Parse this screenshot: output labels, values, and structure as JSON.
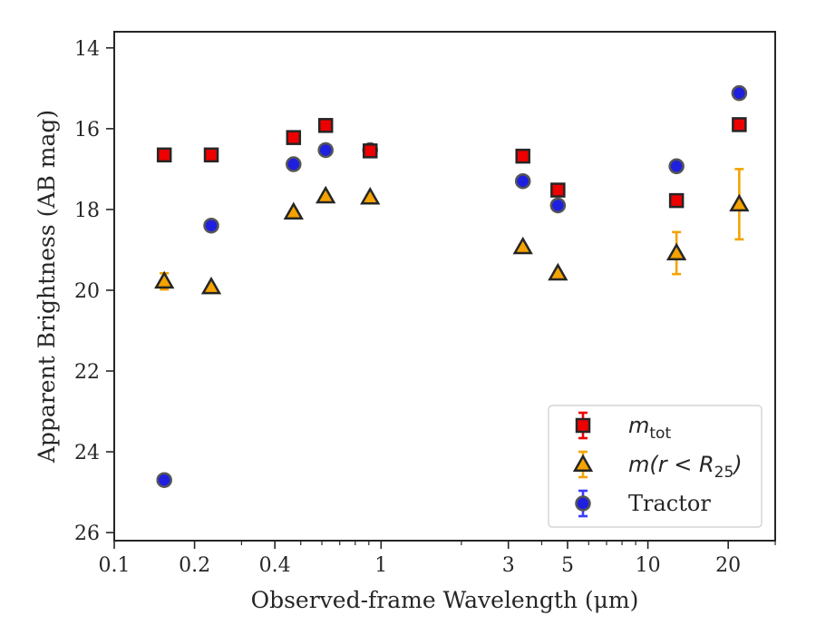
{
  "chart_data": {
    "type": "scatter",
    "title": "",
    "xlabel": "Observed-frame Wavelength (μm)",
    "ylabel": "Apparent Brightness (AB mag)",
    "xscale": "log",
    "xlim": [
      0.1,
      30
    ],
    "ylim": [
      26.2,
      13.6
    ],
    "y_inverted": true,
    "grid": false,
    "legend_position": "bottom-right",
    "x_ticks": [
      {
        "value": 0.1,
        "label": "0.1"
      },
      {
        "value": 0.2,
        "label": "0.2"
      },
      {
        "value": 0.4,
        "label": "0.4"
      },
      {
        "value": 1,
        "label": "1"
      },
      {
        "value": 3,
        "label": "3"
      },
      {
        "value": 5,
        "label": "5"
      },
      {
        "value": 10,
        "label": "10"
      },
      {
        "value": 20,
        "label": "20"
      }
    ],
    "x_minor_ticks": [
      0.3,
      0.5,
      0.6,
      0.7,
      0.8,
      0.9,
      2,
      4,
      6,
      7,
      8,
      9,
      30
    ],
    "y_ticks": [
      {
        "value": 14,
        "label": "14"
      },
      {
        "value": 16,
        "label": "16"
      },
      {
        "value": 18,
        "label": "18"
      },
      {
        "value": 20,
        "label": "20"
      },
      {
        "value": 22,
        "label": "22"
      },
      {
        "value": 24,
        "label": "24"
      },
      {
        "value": 26,
        "label": "26"
      }
    ],
    "series": [
      {
        "key": "tractor",
        "legend_html": "Tractor",
        "marker": "circle",
        "color": "#1f1fe0",
        "edge": "#555555",
        "error_color": "#3a3aff",
        "points": [
          {
            "x": 0.154,
            "y": 24.7,
            "err": 0.05
          },
          {
            "x": 0.231,
            "y": 18.4,
            "err": 0.05
          },
          {
            "x": 0.47,
            "y": 16.88,
            "err": 0.03
          },
          {
            "x": 0.62,
            "y": 16.53,
            "err": 0.03
          },
          {
            "x": 0.91,
            "y": 16.53,
            "err": 0.03
          },
          {
            "x": 3.4,
            "y": 17.3,
            "err": 0.03
          },
          {
            "x": 4.6,
            "y": 17.9,
            "err": 0.03
          },
          {
            "x": 12.8,
            "y": 16.93,
            "err": 0.05
          },
          {
            "x": 22.0,
            "y": 15.12,
            "err": 0.05
          }
        ]
      },
      {
        "key": "mtot",
        "legend_math": "m",
        "legend_sub": "tot",
        "marker": "square",
        "color": "#ee0000",
        "edge": "#262626",
        "error_color": "#ee0000",
        "points": [
          {
            "x": 0.154,
            "y": 16.65,
            "err": 0.05
          },
          {
            "x": 0.231,
            "y": 16.65,
            "err": 0.05
          },
          {
            "x": 0.47,
            "y": 16.22,
            "err": 0.03
          },
          {
            "x": 0.62,
            "y": 15.92,
            "err": 0.03
          },
          {
            "x": 0.91,
            "y": 16.55,
            "err": 0.03
          },
          {
            "x": 3.4,
            "y": 16.68,
            "err": 0.03
          },
          {
            "x": 4.6,
            "y": 17.52,
            "err": 0.03
          },
          {
            "x": 12.8,
            "y": 17.78,
            "err": 0.05
          },
          {
            "x": 22.0,
            "y": 15.9,
            "err": 0.05
          }
        ]
      },
      {
        "key": "m_r25",
        "legend_math": "m(r < R",
        "legend_sub": "25",
        "legend_after": ")",
        "marker": "triangle",
        "color": "#f5a300",
        "edge": "#262626",
        "error_color": "#f5a300",
        "points": [
          {
            "x": 0.154,
            "y": 19.78,
            "err": 0.2
          },
          {
            "x": 0.231,
            "y": 19.92,
            "err": 0.05
          },
          {
            "x": 0.47,
            "y": 18.07,
            "err": 0.05
          },
          {
            "x": 0.62,
            "y": 17.67,
            "err": 0.05
          },
          {
            "x": 0.91,
            "y": 17.7,
            "err": 0.05
          },
          {
            "x": 3.4,
            "y": 18.93,
            "err": 0.05
          },
          {
            "x": 4.6,
            "y": 19.58,
            "err": 0.05
          },
          {
            "x": 12.8,
            "y": 19.08,
            "err": 0.52
          },
          {
            "x": 22.0,
            "y": 17.87,
            "err": 0.87
          }
        ]
      }
    ],
    "legend_order": [
      "mtot",
      "m_r25",
      "tractor"
    ]
  }
}
